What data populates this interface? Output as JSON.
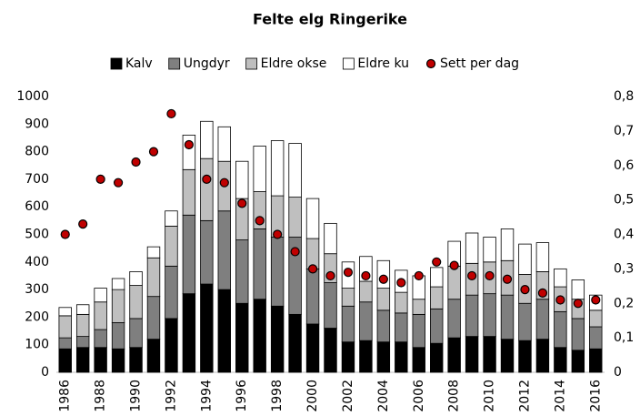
{
  "chart_data": {
    "type": "bar",
    "stacked": true,
    "title": "Felte elg Ringerike",
    "categories": [
      "1986",
      null,
      "1988",
      null,
      "1990",
      null,
      "1992",
      null,
      "1994",
      null,
      "1996",
      null,
      "1998",
      null,
      "2000",
      null,
      "2002",
      null,
      "2004",
      null,
      "2006",
      null,
      "2008",
      null,
      "2010",
      null,
      "2012",
      null,
      "2014",
      null,
      "2016"
    ],
    "series": [
      {
        "name": "Kalv",
        "color": "#000000",
        "values": [
          85,
          90,
          90,
          85,
          90,
          120,
          195,
          285,
          320,
          300,
          250,
          265,
          240,
          210,
          175,
          160,
          110,
          115,
          110,
          110,
          90,
          105,
          125,
          130,
          130,
          120,
          115,
          120,
          90,
          80,
          85
        ]
      },
      {
        "name": "Ungdyr",
        "color": "#7f7f7f",
        "values": [
          40,
          40,
          65,
          95,
          105,
          155,
          190,
          285,
          230,
          285,
          230,
          255,
          250,
          280,
          200,
          165,
          130,
          140,
          115,
          105,
          120,
          125,
          140,
          150,
          155,
          160,
          135,
          145,
          130,
          115,
          80
        ]
      },
      {
        "name": "Eldre okse",
        "color": "#bfbfbf",
        "values": [
          80,
          80,
          100,
          120,
          120,
          140,
          145,
          165,
          225,
          180,
          150,
          135,
          150,
          145,
          110,
          105,
          65,
          75,
          80,
          75,
          55,
          80,
          120,
          115,
          115,
          125,
          105,
          100,
          90,
          70,
          60
        ]
      },
      {
        "name": "Eldre ku",
        "color": "#ffffff",
        "values": [
          30,
          35,
          50,
          40,
          50,
          40,
          55,
          125,
          135,
          125,
          135,
          165,
          200,
          195,
          145,
          110,
          95,
          90,
          100,
          80,
          85,
          70,
          90,
          110,
          90,
          115,
          110,
          105,
          65,
          70,
          55
        ]
      },
      {
        "name": "Sett per dag",
        "color": "#c00000",
        "axis": "y2",
        "values": [
          0.4,
          0.43,
          0.56,
          0.55,
          0.61,
          0.64,
          0.75,
          0.66,
          0.56,
          0.55,
          0.49,
          0.44,
          0.4,
          0.35,
          0.3,
          0.28,
          0.29,
          0.28,
          0.27,
          0.26,
          0.28,
          0.32,
          0.31,
          0.28,
          0.28,
          0.27,
          0.24,
          0.23,
          0.21,
          0.2,
          0.21
        ]
      }
    ],
    "ylim": [
      0,
      1000
    ],
    "yticks": [
      0,
      100,
      200,
      300,
      400,
      500,
      600,
      700,
      800,
      900,
      1000
    ],
    "y2lim": [
      0,
      0.8
    ],
    "y2ticks": [
      0,
      {
        "value": 0.1,
        "label": "0,1"
      },
      {
        "value": 0.2,
        "label": "0,2"
      },
      {
        "value": 0.3,
        "label": "0,3"
      },
      {
        "value": 0.4,
        "label": "0,4"
      },
      {
        "value": 0.5,
        "label": "0,5"
      },
      {
        "value": 0.6,
        "label": "0,6"
      },
      {
        "value": 0.7,
        "label": "0,7"
      },
      {
        "value": 0.8,
        "label": "0,8"
      }
    ],
    "grid": false,
    "legend": "top"
  }
}
